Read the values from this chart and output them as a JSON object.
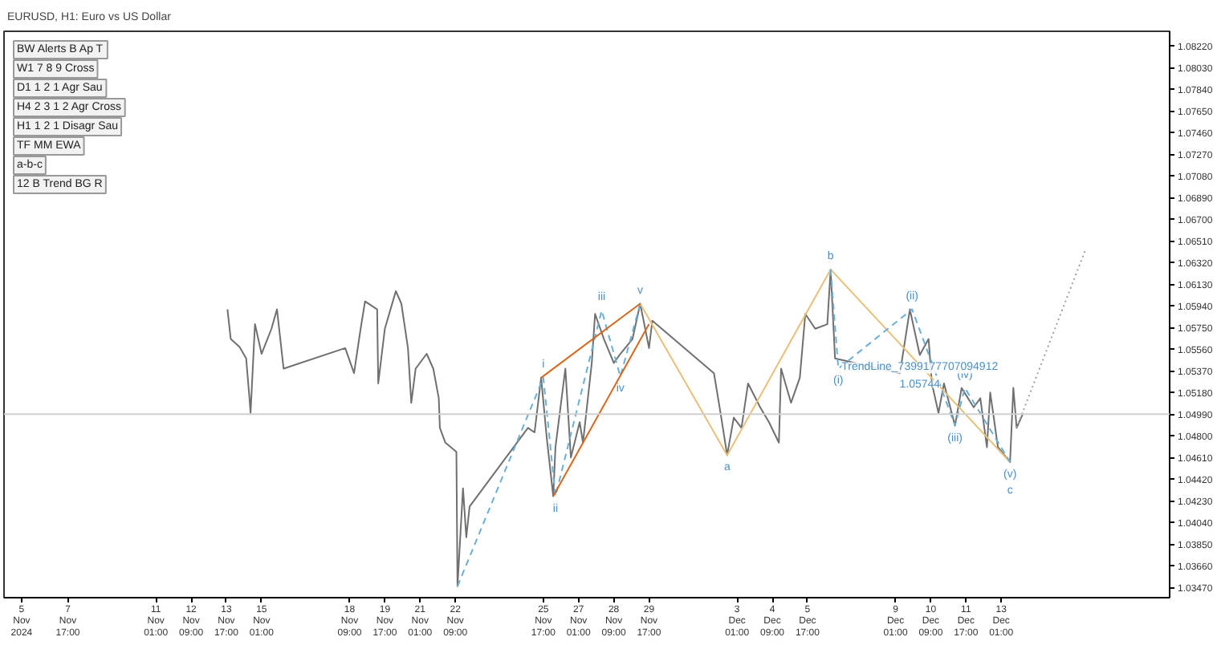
{
  "chart_data": {
    "type": "line",
    "title": "EURUSD, H1: Euro vs US Dollar",
    "xlim": [
      "2024-11-05T07:00",
      "2024-12-19T10:00"
    ],
    "ylim": [
      1.0338,
      1.0835
    ],
    "xticks": [
      {
        "value": "2024-11-05T23:00",
        "label": "5 Nov 2024"
      },
      {
        "value": "2024-11-07T17:00",
        "label": "7 Nov 17:00"
      },
      {
        "value": "2024-11-11T01:00",
        "label": "11 Nov 01:00"
      },
      {
        "value": "2024-11-12T09:00",
        "label": "12 Nov 09:00"
      },
      {
        "value": "2024-11-13T17:00",
        "label": "13 Nov 17:00"
      },
      {
        "value": "2024-11-15T01:00",
        "label": "15 Nov 01:00"
      },
      {
        "value": "2024-11-18T09:00",
        "label": "18 Nov 09:00"
      },
      {
        "value": "2024-11-19T17:00",
        "label": "19 Nov 17:00"
      },
      {
        "value": "2024-11-21T01:00",
        "label": "21 Nov 01:00"
      },
      {
        "value": "2024-11-22T09:00",
        "label": "22 Nov 09:00"
      },
      {
        "value": "2024-11-25T17:00",
        "label": "25 Nov 17:00"
      },
      {
        "value": "2024-11-27T01:00",
        "label": "27 Nov 01:00"
      },
      {
        "value": "2024-11-28T09:00",
        "label": "28 Nov 09:00"
      },
      {
        "value": "2024-11-29T17:00",
        "label": "29 Nov 17:00"
      },
      {
        "value": "2024-12-03T01:00",
        "label": "3 Dec 01:00"
      },
      {
        "value": "2024-12-04T09:00",
        "label": "4 Dec 09:00"
      },
      {
        "value": "2024-12-05T17:00",
        "label": "5 Dec 17:00"
      },
      {
        "value": "2024-12-09T01:00",
        "label": "9 Dec 01:00"
      },
      {
        "value": "2024-12-10T09:00",
        "label": "10 Dec 09:00"
      },
      {
        "value": "2024-12-11T17:00",
        "label": "11 Dec 17:00"
      },
      {
        "value": "2024-12-13T01:00",
        "label": "13 Dec 01:00"
      }
    ],
    "yticks": [
      {
        "value": 1.0347,
        "label": "1.03470"
      },
      {
        "value": 1.0366,
        "label": "1.03660"
      },
      {
        "value": 1.0385,
        "label": "1.03850"
      },
      {
        "value": 1.0404,
        "label": "1.04040"
      },
      {
        "value": 1.0423,
        "label": "1.04230"
      },
      {
        "value": 1.0442,
        "label": "1.04420"
      },
      {
        "value": 1.0461,
        "label": "1.04610"
      },
      {
        "value": 1.048,
        "label": "1.04800"
      },
      {
        "value": 1.0499,
        "label": "1.04990"
      },
      {
        "value": 1.0518,
        "label": "1.05180"
      },
      {
        "value": 1.0537,
        "label": "1.05370"
      },
      {
        "value": 1.0556,
        "label": "1.05560"
      },
      {
        "value": 1.0575,
        "label": "1.05750"
      },
      {
        "value": 1.0594,
        "label": "1.05940"
      },
      {
        "value": 1.0613,
        "label": "1.06130"
      },
      {
        "value": 1.0632,
        "label": "1.06320"
      },
      {
        "value": 1.0651,
        "label": "1.06510"
      },
      {
        "value": 1.067,
        "label": "1.06700"
      },
      {
        "value": 1.0689,
        "label": "1.06890"
      },
      {
        "value": 1.0708,
        "label": "1.07080"
      },
      {
        "value": 1.0727,
        "label": "1.07270"
      },
      {
        "value": 1.0746,
        "label": "1.07460"
      },
      {
        "value": 1.0765,
        "label": "1.07650"
      },
      {
        "value": 1.0784,
        "label": "1.07840"
      },
      {
        "value": 1.0803,
        "label": "1.08030"
      },
      {
        "value": 1.0822,
        "label": "1.08220"
      }
    ],
    "grid": false,
    "series": [
      {
        "color": "#707070",
        "line_style": "solid",
        "x": [
          "2024-11-13T18:00",
          "2024-11-13T21:00",
          "2024-11-14T05:00",
          "2024-11-14T11:00",
          "2024-11-14T14:00",
          "2024-11-14T15:00",
          "2024-11-14T17:00",
          "2024-11-14T19:00",
          "2024-11-15T01:00",
          "2024-11-15T10:00",
          "2024-11-15T15:00",
          "2024-11-15T21:00",
          "2024-11-18T05:00",
          "2024-11-18T13:00",
          "2024-11-18T19:00",
          "2024-11-18T23:00",
          "2024-11-19T10:00",
          "2024-11-19T11:00",
          "2024-11-19T17:00",
          "2024-11-20T03:00",
          "2024-11-20T08:00",
          "2024-11-20T14:00",
          "2024-11-20T17:00",
          "2024-11-20T21:00",
          "2024-11-21T07:00",
          "2024-11-21T13:00",
          "2024-11-21T18:00",
          "2024-11-21T19:00",
          "2024-11-22T00:00",
          "2024-11-22T10:00",
          "2024-11-22T11:00",
          "2024-11-22T16:00",
          "2024-11-22T19:00",
          "2024-11-22T22:00",
          "2024-11-25T03:00",
          "2024-11-25T09:00",
          "2024-11-25T15:00",
          "2024-11-25T20:00",
          "2024-11-26T02:00",
          "2024-11-26T04:00",
          "2024-11-26T13:00",
          "2024-11-26T18:00",
          "2024-11-27T02:00",
          "2024-11-27T05:00",
          "2024-11-27T13:00",
          "2024-11-27T16:00",
          "2024-11-28T00:00",
          "2024-11-28T09:00",
          "2024-11-28T15:00",
          "2024-11-29T02:00",
          "2024-11-29T09:00",
          "2024-11-29T17:00",
          "2024-11-29T20:00",
          "2024-12-02T04:00",
          "2024-12-02T10:00",
          "2024-12-02T16:00",
          "2024-12-02T22:00",
          "2024-12-03T05:00",
          "2024-12-03T11:00",
          "2024-12-03T22:00",
          "2024-12-04T06:00",
          "2024-12-04T15:00",
          "2024-12-04T17:00",
          "2024-12-05T02:00",
          "2024-12-05T10:00",
          "2024-12-05T15:00",
          "2024-12-06T00:00",
          "2024-12-06T11:00",
          "2024-12-06T14:00",
          "2024-12-06T18:00",
          "2024-12-09T05:00",
          "2024-12-09T14:00",
          "2024-12-09T23:00",
          "2024-12-10T07:00",
          "2024-12-10T10:00",
          "2024-12-10T16:00",
          "2024-12-10T21:00",
          "2024-12-11T07:00",
          "2024-12-11T13:00",
          "2024-12-12T00:00",
          "2024-12-12T06:00",
          "2024-12-12T12:00",
          "2024-12-12T15:00",
          "2024-12-12T22:00",
          "2024-12-13T09:00",
          "2024-12-13T12:00",
          "2024-12-13T15:00",
          "2024-12-13T21:00"
        ],
        "values": [
          1.0591,
          1.0565,
          1.0558,
          1.0548,
          1.0513,
          1.05,
          1.0539,
          1.0578,
          1.0552,
          1.0574,
          1.0591,
          1.0539,
          1.0557,
          1.0535,
          1.0574,
          1.0598,
          1.0591,
          1.0526,
          1.0574,
          1.0607,
          1.0596,
          1.0557,
          1.0509,
          1.0539,
          1.0552,
          1.0539,
          1.0513,
          1.0487,
          1.0474,
          1.0466,
          1.0348,
          1.0434,
          1.0391,
          1.0418,
          1.0487,
          1.0483,
          1.0531,
          1.0479,
          1.0427,
          1.047,
          1.0539,
          1.0461,
          1.0492,
          1.0474,
          1.0544,
          1.0587,
          1.0565,
          1.0544,
          1.0552,
          1.0565,
          1.0596,
          1.0557,
          1.0581,
          1.0535,
          1.05,
          1.0463,
          1.0496,
          1.0487,
          1.0526,
          1.0505,
          1.0492,
          1.0474,
          1.0539,
          1.0509,
          1.0531,
          1.0587,
          1.0574,
          1.0578,
          1.0626,
          1.0548,
          1.0535,
          1.0591,
          1.0551,
          1.0565,
          1.0526,
          1.05,
          1.0526,
          1.0489,
          1.0522,
          1.0505,
          1.0513,
          1.047,
          1.0518,
          1.047,
          1.0457,
          1.0522,
          1.0487,
          1.05
        ]
      },
      {
        "color": "#6baed6",
        "line_style": "dashed",
        "x": [
          "2024-11-22T11:00",
          "2024-11-25T17:00",
          "2024-11-26T04:00",
          "2024-11-27T22:00",
          "2024-11-28T15:00",
          "2024-11-29T09:00"
        ],
        "values": [
          1.0348,
          1.0531,
          1.0427,
          1.059,
          1.0532,
          1.0596
        ]
      },
      {
        "color": "#e8c07a",
        "line_style": "solid",
        "x": [
          "2024-11-29T09:00",
          "2024-12-02T16:00",
          "2024-12-06T14:00",
          "2024-12-13T09:00"
        ],
        "values": [
          1.0596,
          1.0463,
          1.0626,
          1.0457
        ]
      },
      {
        "color": "#6baed6",
        "line_style": "dashed",
        "x": [
          "2024-12-06T14:00",
          "2024-12-06T21:00",
          "2024-12-09T16:00",
          "2024-12-11T07:00",
          "2024-12-11T16:00",
          "2024-12-13T09:00"
        ],
        "values": [
          1.0626,
          1.0539,
          1.0591,
          1.0489,
          1.0522,
          1.0457
        ]
      },
      {
        "color": "#d2691e",
        "line_style": "solid",
        "x": [
          "2024-11-25T15:00",
          "2024-11-29T09:00"
        ],
        "values": [
          1.0531,
          1.0596
        ]
      },
      {
        "color": "#d2691e",
        "line_style": "solid",
        "x": [
          "2024-11-26T02:00",
          "2024-11-29T17:00"
        ],
        "values": [
          1.0427,
          1.0578
        ]
      },
      {
        "color": "#a0a0a0",
        "line_style": "dotted",
        "x": [
          "2024-12-13T15:00",
          "2024-12-16T05:00"
        ],
        "values": [
          1.0487,
          1.0642
        ]
      }
    ],
    "ref_lines": [
      {
        "axis": "y",
        "value": 1.0499,
        "color": "#d0d0d0"
      }
    ],
    "annotations": [
      {
        "text": "i",
        "x": "2024-11-25T17:00",
        "y": 1.0531
      },
      {
        "text": "ii",
        "x": "2024-11-26T04:00",
        "y": 1.0427
      },
      {
        "text": "iii",
        "x": "2024-11-27T22:00",
        "y": 1.059
      },
      {
        "text": "iv",
        "x": "2024-11-28T15:00",
        "y": 1.0532
      },
      {
        "text": "v",
        "x": "2024-11-29T09:00",
        "y": 1.0596
      },
      {
        "text": "a",
        "x": "2024-12-02T16:00",
        "y": 1.0463
      },
      {
        "text": "b",
        "x": "2024-12-06T14:00",
        "y": 1.0626
      },
      {
        "text": "(v)",
        "x": "2024-12-13T09:00",
        "y": 1.0457
      },
      {
        "text": "c",
        "x": "2024-12-13T09:00",
        "y": 1.0457
      },
      {
        "text": "(i)",
        "x": "2024-12-06T21:00",
        "y": 1.0539
      },
      {
        "text": "(ii)",
        "x": "2024-12-09T16:00",
        "y": 1.0591
      },
      {
        "text": "(iii)",
        "x": "2024-12-11T07:00",
        "y": 1.0489
      },
      {
        "text": "(iv)",
        "x": "2024-12-11T16:00",
        "y": 1.0522
      },
      {
        "text": "TrendLine_7399177707094912",
        "x": "2024-12-09T23:00",
        "y": 1.0551
      },
      {
        "text": "1.05744",
        "x": "2024-12-09T23:00",
        "y": 1.0551
      },
      "BW Alerts B Ap T",
      "W1 7 8 9 Cross",
      "D1 1 2 1 Agr Sau",
      "H4 2 3 1 2 Agr Cross",
      "H1 1 2 1 Disagr Sau",
      "TF MM EWA",
      "a-b-c",
      "12 B Trend BG R"
    ]
  }
}
